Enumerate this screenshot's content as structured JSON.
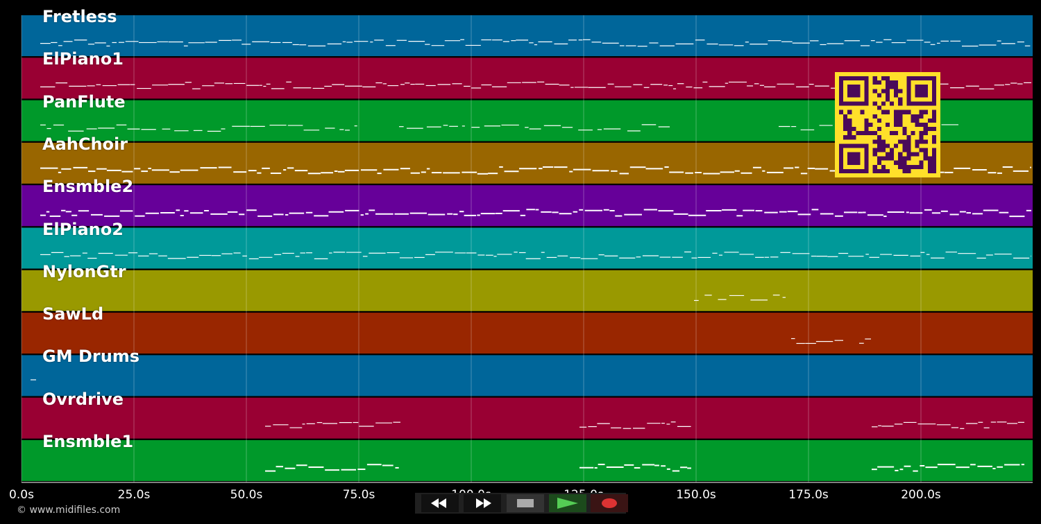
{
  "tracks": [
    {
      "name": "Fretless",
      "color": "#00669a"
    },
    {
      "name": "ElPiano1",
      "color": "#990033"
    },
    {
      "name": "PanFlute",
      "color": "#00992a"
    },
    {
      "name": "AahChoir",
      "color": "#996600"
    },
    {
      "name": "Ensmble2",
      "color": "#660099"
    },
    {
      "name": "ElPiano2",
      "color": "#009999"
    },
    {
      "name": "NylonGtr",
      "color": "#999900"
    },
    {
      "name": "SawLd",
      "color": "#992600"
    },
    {
      "name": "GM Drums",
      "color": "#00669a"
    },
    {
      "name": "Ovrdrive",
      "color": "#990033"
    },
    {
      "name": "Ensmble1",
      "color": "#00992a"
    }
  ],
  "timeline": {
    "ticks": [
      "0.0s",
      "25.0s",
      "50.0s",
      "75.0s",
      "100.0s",
      "125.0s",
      "150.0s",
      "175.0s",
      "200.0s"
    ]
  },
  "footer": {
    "copyright": "© www.midifiles.com"
  },
  "transport": {
    "rewind_icon": "rewind-icon",
    "forward_icon": "fast-forward-icon",
    "stop_icon": "stop-icon",
    "play_icon": "play-icon",
    "record_icon": "record-icon",
    "play_color": "#55cc55",
    "record_color": "#dd3333"
  },
  "overlay": {
    "qr_color": "#ffe02a",
    "qr_dark": "#4a0a5a"
  }
}
